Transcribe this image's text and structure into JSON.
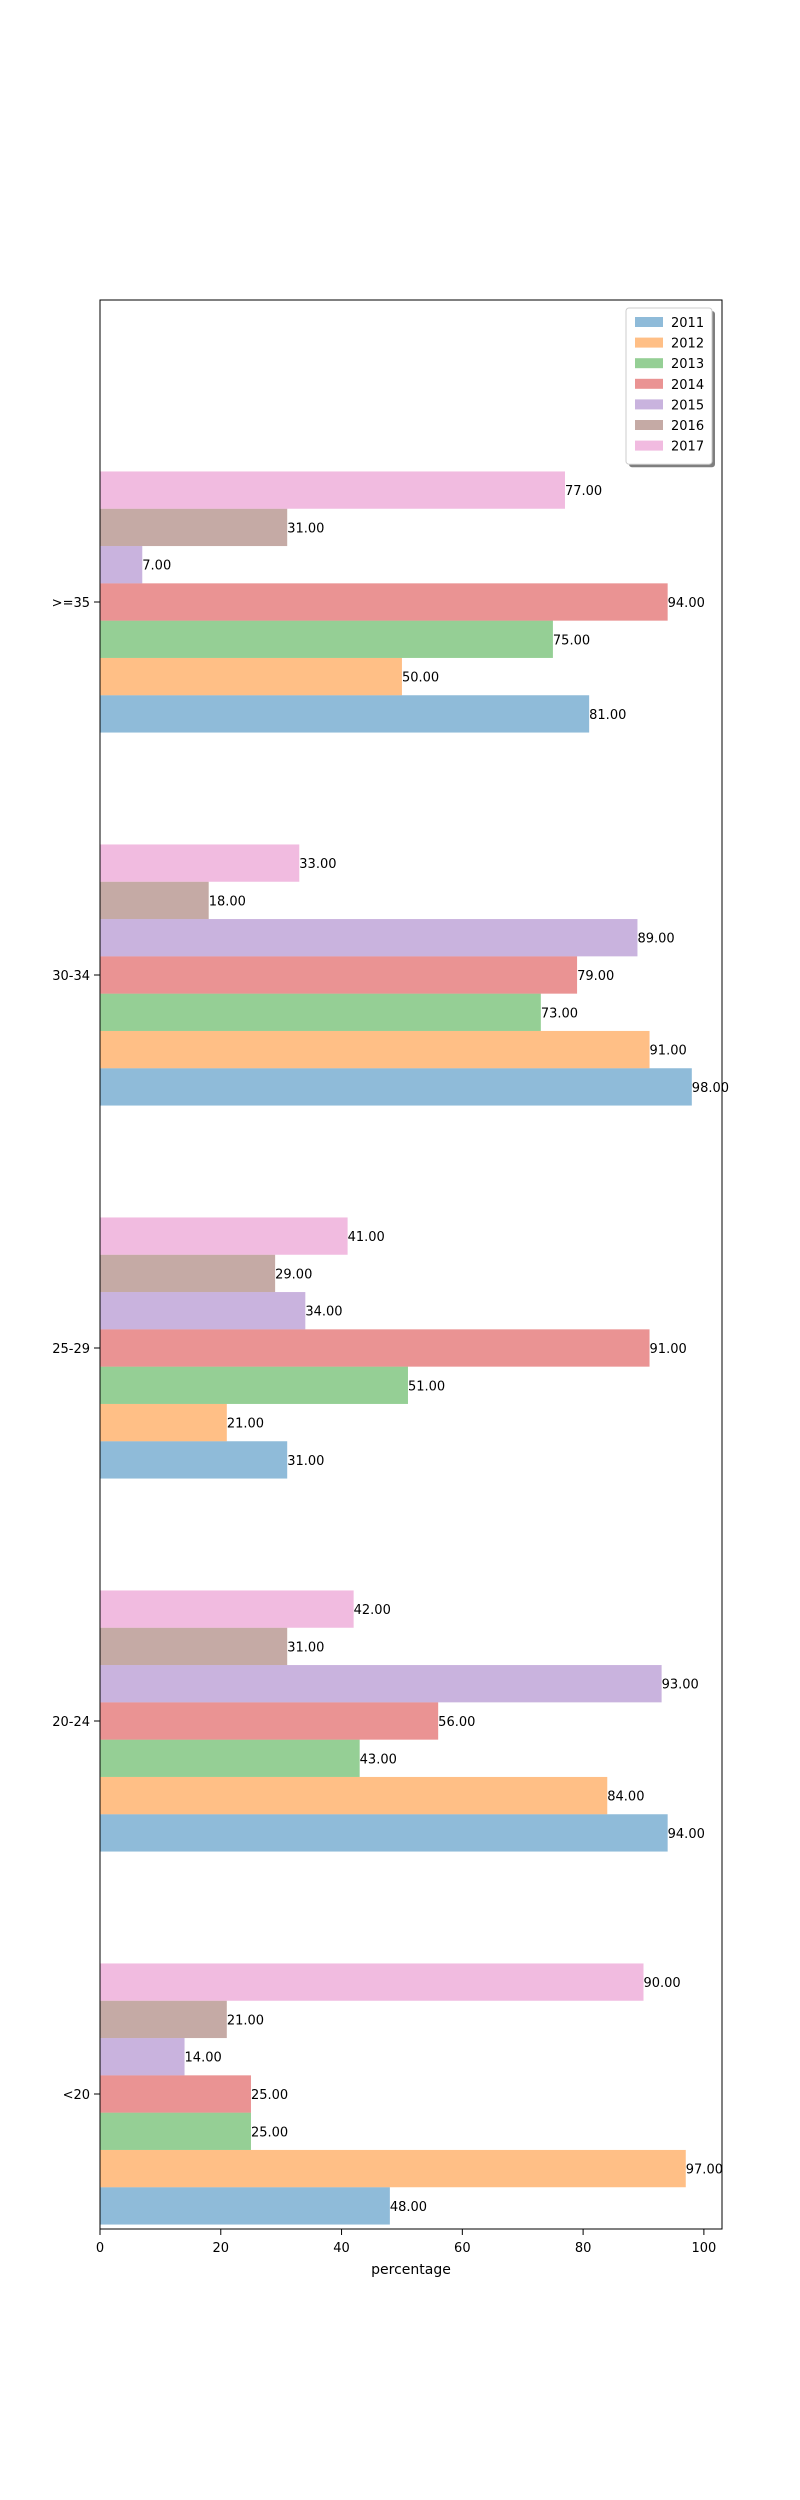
{
  "chart_data": {
    "type": "bar",
    "orientation": "horizontal",
    "categories": [
      "<20",
      "20-24",
      "25-29",
      "30-34",
      ">=35"
    ],
    "series": [
      {
        "name": "2011",
        "color": "#1f77b4",
        "values": [
          48,
          94,
          31,
          98,
          81
        ]
      },
      {
        "name": "2012",
        "color": "#ff7f0e",
        "values": [
          97,
          84,
          21,
          91,
          50
        ]
      },
      {
        "name": "2013",
        "color": "#2ca02c",
        "values": [
          25,
          43,
          51,
          73,
          75
        ]
      },
      {
        "name": "2014",
        "color": "#d62728",
        "values": [
          25,
          56,
          91,
          79,
          94
        ]
      },
      {
        "name": "2015",
        "color": "#9467bd",
        "values": [
          14,
          93,
          34,
          89,
          7
        ]
      },
      {
        "name": "2016",
        "color": "#8c564b",
        "values": [
          21,
          31,
          29,
          18,
          31
        ]
      },
      {
        "name": "2017",
        "color": "#e377c2",
        "values": [
          90,
          42,
          41,
          33,
          77
        ]
      }
    ],
    "bar_opacity": 0.5,
    "title": "",
    "xlabel": "percentage",
    "ylabel": "",
    "xlim": [
      0,
      103
    ],
    "xticks": [
      0,
      20,
      40,
      60,
      80,
      100
    ],
    "value_label_format": "2 decimals",
    "legend_position": "top-right",
    "grid": false
  }
}
